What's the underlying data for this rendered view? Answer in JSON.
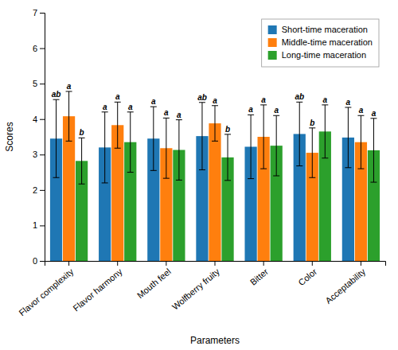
{
  "chart_data": {
    "type": "bar",
    "categories": [
      "Flavor complexity",
      "Flavor harmony",
      "Mouth feel",
      "Wolfberry fruity",
      "Bitter",
      "Color",
      "Acceptability"
    ],
    "series": [
      {
        "name": "Short-time maceration",
        "values": [
          3.45,
          3.2,
          3.45,
          3.52,
          3.22,
          3.58,
          3.48
        ],
        "errors": [
          1.1,
          1.0,
          0.9,
          0.95,
          0.9,
          0.9,
          0.85
        ],
        "sig_labels": [
          "ab",
          "a",
          "a",
          "ab",
          "a",
          "ab",
          "a"
        ]
      },
      {
        "name": "Middle-time maceration",
        "values": [
          4.08,
          3.83,
          3.18,
          3.88,
          3.5,
          3.05,
          3.35
        ],
        "errors": [
          0.7,
          0.65,
          0.85,
          0.5,
          0.9,
          0.7,
          0.75
        ],
        "sig_labels": [
          "a",
          "a",
          "a",
          "a",
          "a",
          "b",
          "a"
        ]
      },
      {
        "name": "Long-time maceration",
        "values": [
          2.82,
          3.35,
          3.13,
          2.92,
          3.25,
          3.65,
          3.12
        ],
        "errors": [
          0.65,
          0.85,
          0.85,
          0.65,
          0.85,
          0.75,
          0.9
        ],
        "sig_labels": [
          "b",
          "a",
          "a",
          "b",
          "a",
          "a",
          "a"
        ]
      }
    ],
    "xlabel": "Parameters",
    "ylabel": "Scores",
    "ylim": [
      0,
      7
    ],
    "yticks": [
      0,
      1,
      2,
      3,
      4,
      5,
      6,
      7
    ],
    "grid": false,
    "legend": "upper right"
  }
}
